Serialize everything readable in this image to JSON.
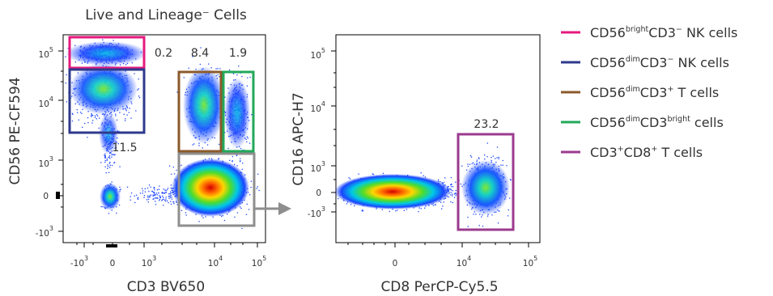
{
  "colors": {
    "nk_bright": "#e6197e",
    "nk_dim": "#2e3a8c",
    "t_cells": "#8b5a2b",
    "cd3_bright": "#22a85a",
    "cd8_t": "#9b3a8f",
    "parent_gate": "#8e8e8e",
    "arrow": "#8e8e8e"
  },
  "density_scale": [
    "blue",
    "cyan",
    "green",
    "yellow",
    "red"
  ],
  "left_plot": {
    "title": "Live and Lineage⁻ Cells",
    "xlabel": "CD3 BV650",
    "ylabel": "CD56 PE-CF594",
    "xticks": [
      {
        "base": "-10",
        "exp": "3"
      },
      {
        "base": "0",
        "exp": ""
      },
      {
        "base": "10",
        "exp": "3"
      },
      {
        "base": "10",
        "exp": "4"
      },
      {
        "base": "10",
        "exp": "5"
      }
    ],
    "yticks": [
      {
        "base": "10",
        "exp": "5"
      },
      {
        "base": "10",
        "exp": "4"
      },
      {
        "base": "10",
        "exp": "3"
      },
      {
        "base": "0",
        "exp": ""
      },
      {
        "base": "-10",
        "exp": "3"
      }
    ],
    "gate_values": {
      "nk_bright": "0.2",
      "nk_dim": "11.5",
      "t_cells": "8.4",
      "cd3_bright": "1.9"
    }
  },
  "right_plot": {
    "xlabel": "CD8 PerCP-Cy5.5",
    "ylabel": "CD16 APC-H7",
    "xticks": [
      {
        "base": "0",
        "exp": ""
      },
      {
        "base": "10",
        "exp": "4"
      },
      {
        "base": "10",
        "exp": "5"
      }
    ],
    "yticks": [
      {
        "base": "10",
        "exp": "5"
      },
      {
        "base": "10",
        "exp": "4"
      },
      {
        "base": "10",
        "exp": "3"
      },
      {
        "base": "0",
        "exp": ""
      },
      {
        "base": "-10",
        "exp": "3"
      }
    ],
    "gate_values": {
      "cd8_t": "23.2"
    }
  },
  "legend": [
    {
      "key": "nk_bright",
      "base": "CD56",
      "sup1": "bright",
      "mid": "CD3",
      "sup2": "−",
      "tail": " NK cells"
    },
    {
      "key": "nk_dim",
      "base": "CD56",
      "sup1": "dim",
      "mid": "CD3",
      "sup2": "−",
      "tail": " NK cells"
    },
    {
      "key": "t_cells",
      "base": "CD56",
      "sup1": "dim",
      "mid": "CD3",
      "sup2": "+",
      "tail": " T cells"
    },
    {
      "key": "cd3_bright",
      "base": "CD56",
      "sup1": "dim",
      "mid": "CD3",
      "sup2": "bright",
      "tail": " cells"
    },
    {
      "key": "cd8_t",
      "base": "CD3",
      "sup1": "+",
      "mid": "CD8",
      "sup2": "+",
      "tail": " T cells"
    }
  ],
  "chart_data": [
    {
      "type": "scatter",
      "title": "Live and Lineage⁻ Cells",
      "xlabel": "CD3 BV650",
      "ylabel": "CD56 PE-CF594",
      "xscale": "biexponential",
      "yscale": "biexponential",
      "populations": [
        {
          "gate": "nk_bright",
          "percent": 0.2
        },
        {
          "gate": "nk_dim",
          "percent": 11.5
        },
        {
          "gate": "t_cells",
          "percent": 8.4
        },
        {
          "gate": "cd3_bright",
          "percent": 1.9
        }
      ]
    },
    {
      "type": "scatter",
      "xlabel": "CD8 PerCP-Cy5.5",
      "ylabel": "CD16 APC-H7",
      "xscale": "biexponential",
      "yscale": "biexponential",
      "populations": [
        {
          "gate": "cd8_t",
          "percent": 23.2
        }
      ]
    }
  ]
}
